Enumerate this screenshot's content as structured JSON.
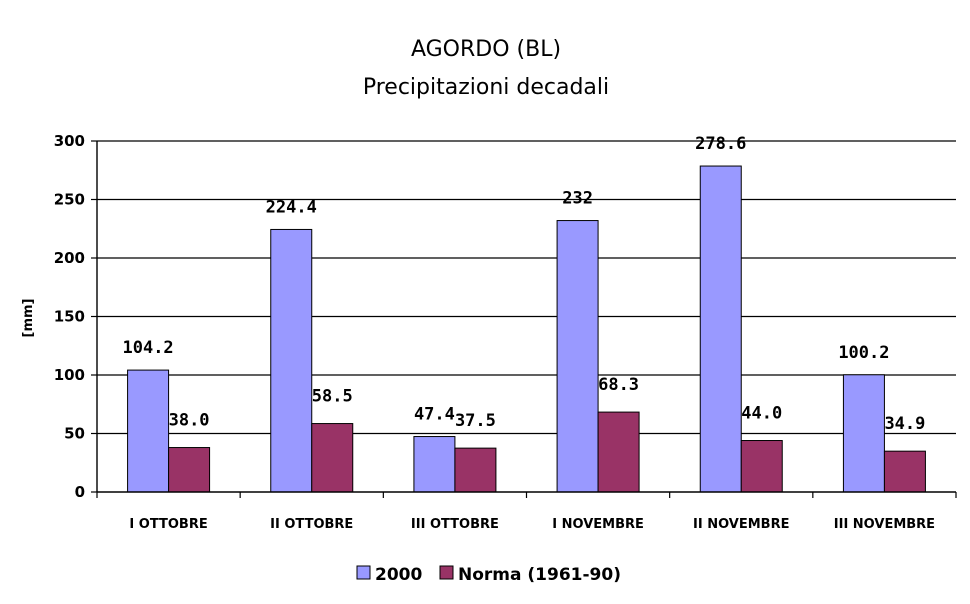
{
  "chart_data": {
    "type": "bar",
    "title": "AGORDO (BL)",
    "subtitle": "Precipitazioni decadali",
    "xlabel": "",
    "ylabel": "[mm]",
    "ylim": [
      0,
      300
    ],
    "yticks": [
      0,
      50,
      100,
      150,
      200,
      250,
      300
    ],
    "grid": true,
    "legend_position": "bottom",
    "categories": [
      "I OTTOBRE",
      "II OTTOBRE",
      "III OTTOBRE",
      "I NOVEMBRE",
      "II NOVEMBRE",
      "III NOVEMBRE"
    ],
    "series": [
      {
        "name": "2000",
        "color": "#9999ff",
        "values": [
          104.2,
          224.4,
          47.4,
          232,
          278.6,
          100.2
        ],
        "labels": [
          "104.2",
          "224.4",
          "47.4",
          "232",
          "278.6",
          "100.2"
        ]
      },
      {
        "name": "Norma (1961-90)",
        "color": "#993366",
        "values": [
          38.0,
          58.5,
          37.5,
          68.3,
          44.0,
          34.9
        ],
        "labels": [
          "38.0",
          "58.5",
          "37.5",
          "68.3",
          "44.0",
          "34.9"
        ]
      }
    ]
  }
}
